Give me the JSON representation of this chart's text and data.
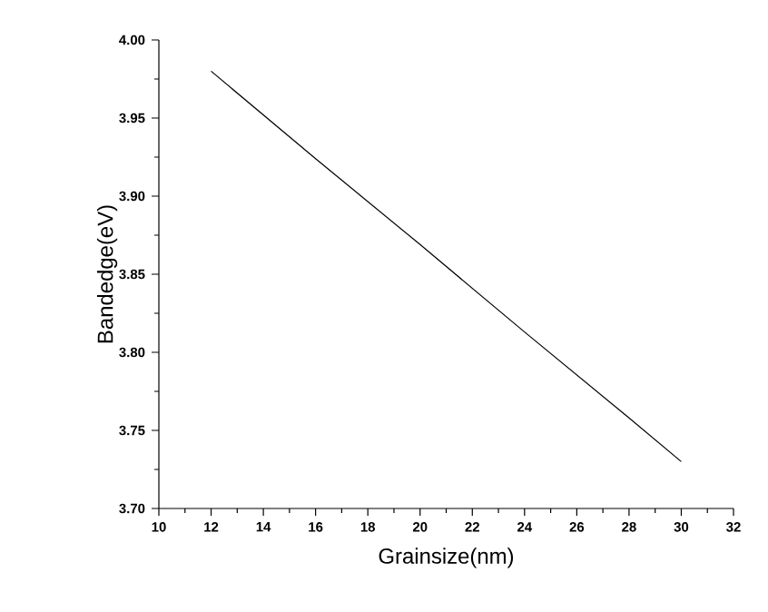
{
  "chart_data": {
    "type": "line",
    "xlabel": "Grainsize(nm)",
    "ylabel": "Bandedge(eV)",
    "x": [
      12,
      16,
      20,
      24,
      28,
      30
    ],
    "series": [
      {
        "color": "#000000",
        "values": [
          3.98,
          3.924,
          3.869,
          3.813,
          3.758,
          3.73
        ]
      }
    ],
    "xlim": [
      10,
      32
    ],
    "xticks": [
      10,
      12,
      14,
      16,
      18,
      20,
      22,
      24,
      26,
      28,
      30,
      32
    ],
    "ylim": [
      3.7,
      4.0
    ],
    "yticks": [
      {
        "value": 3.7,
        "label": "3.70"
      },
      {
        "value": 3.75,
        "label": "3.75"
      },
      {
        "value": 3.8,
        "label": "3.80"
      },
      {
        "value": 3.85,
        "label": "3.85"
      },
      {
        "value": 3.9,
        "label": "3.90"
      },
      {
        "value": 3.95,
        "label": "3.95"
      },
      {
        "value": 4.0,
        "label": "4.00"
      }
    ],
    "marker": "none",
    "line_style": "solid"
  }
}
